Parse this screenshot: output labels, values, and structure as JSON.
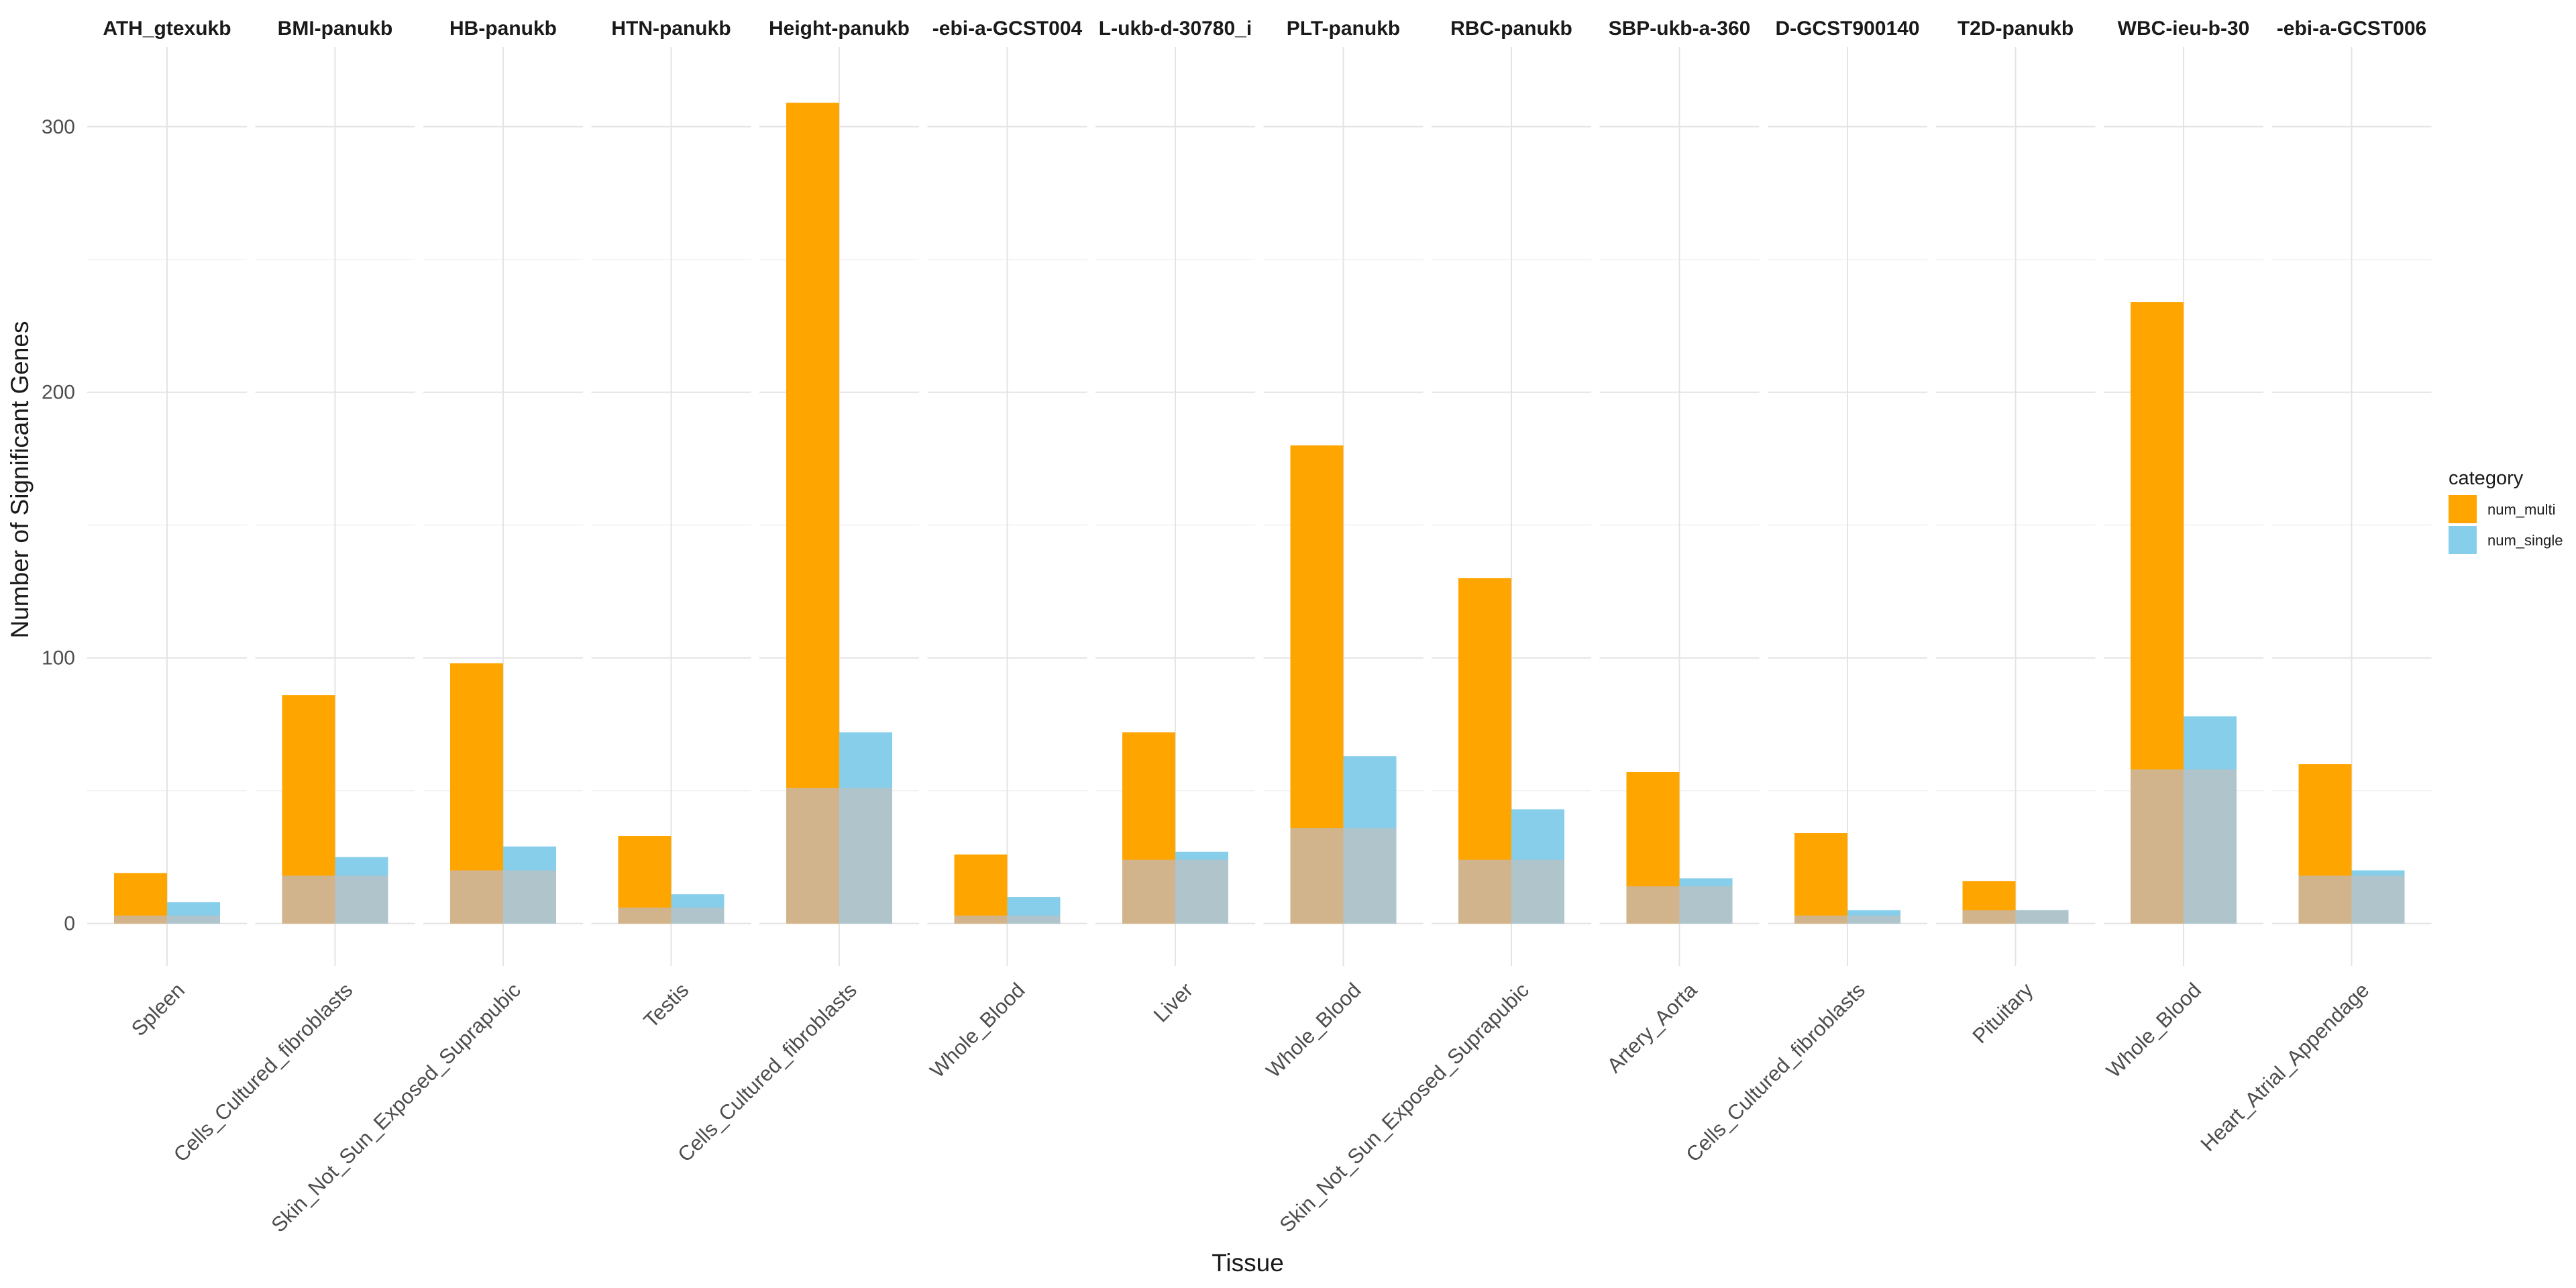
{
  "chart_data": {
    "type": "bar",
    "title": "",
    "xlabel": "Tissue",
    "ylabel": "Number of Significant Genes",
    "ylim": [
      -16,
      330
    ],
    "y_ticks": [
      0,
      100,
      200,
      300
    ],
    "grid": true,
    "legend": {
      "title": "category",
      "position": "right",
      "entries": [
        {
          "name": "num_multi",
          "color": "#FFA500"
        },
        {
          "name": "num_single",
          "color": "#87CEEB"
        }
      ]
    },
    "overlap_color": "#D2B48C",
    "overlap_color_single": "#AFC4CB",
    "facets": [
      {
        "trait": "ATH_gtexukb",
        "tissue": "Spleen",
        "num_multi": 19,
        "num_single": 8,
        "overlap": 3
      },
      {
        "trait": "BMI-panukb",
        "tissue": "Cells_Cultured_fibroblasts",
        "num_multi": 86,
        "num_single": 25,
        "overlap": 18
      },
      {
        "trait": "HB-panukb",
        "tissue": "Skin_Not_Sun_Exposed_Suprapubic",
        "num_multi": 98,
        "num_single": 29,
        "overlap": 20
      },
      {
        "trait": "HTN-panukb",
        "tissue": "Testis",
        "num_multi": 33,
        "num_single": 11,
        "overlap": 6
      },
      {
        "trait": "Height-panukb",
        "tissue": "Cells_Cultured_fibroblasts",
        "num_multi": 309,
        "num_single": 72,
        "overlap": 51
      },
      {
        "trait": "-ebi-a-GCST004",
        "tissue": "Whole_Blood",
        "num_multi": 26,
        "num_single": 10,
        "overlap": 3
      },
      {
        "trait": "L-ukb-d-30780_i",
        "tissue": "Liver",
        "num_multi": 72,
        "num_single": 27,
        "overlap": 24
      },
      {
        "trait": "PLT-panukb",
        "tissue": "Whole_Blood",
        "num_multi": 180,
        "num_single": 63,
        "overlap": 36
      },
      {
        "trait": "RBC-panukb",
        "tissue": "Skin_Not_Sun_Exposed_Suprapubic",
        "num_multi": 130,
        "num_single": 43,
        "overlap": 24
      },
      {
        "trait": "SBP-ukb-a-360",
        "tissue": "Artery_Aorta",
        "num_multi": 57,
        "num_single": 17,
        "overlap": 14
      },
      {
        "trait": "D-GCST900140",
        "tissue": "Cells_Cultured_fibroblasts",
        "num_multi": 34,
        "num_single": 5,
        "overlap": 3
      },
      {
        "trait": "T2D-panukb",
        "tissue": "Pituitary",
        "num_multi": 16,
        "num_single": 5,
        "overlap": 5
      },
      {
        "trait": "WBC-ieu-b-30",
        "tissue": "Whole_Blood",
        "num_multi": 234,
        "num_single": 78,
        "overlap": 58
      },
      {
        "trait": "-ebi-a-GCST006",
        "tissue": "Heart_Atrial_Appendage",
        "num_multi": 60,
        "num_single": 20,
        "overlap": 18
      }
    ]
  }
}
